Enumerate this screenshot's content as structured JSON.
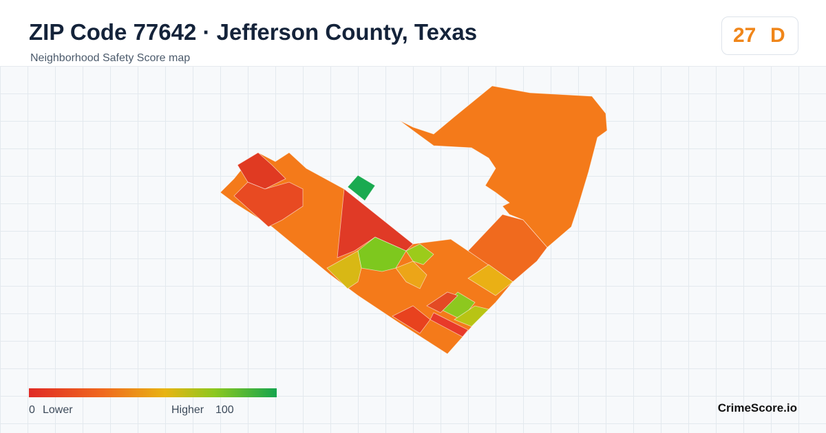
{
  "header": {
    "title": "ZIP Code 77642 · Jefferson County, Texas",
    "subtitle": "Neighborhood Safety Score map"
  },
  "score": {
    "value": 27,
    "grade": "D"
  },
  "legend": {
    "min": 0,
    "min_label": "Lower",
    "max_label": "Higher",
    "max": 100
  },
  "brand": "CrimeScore.io"
}
